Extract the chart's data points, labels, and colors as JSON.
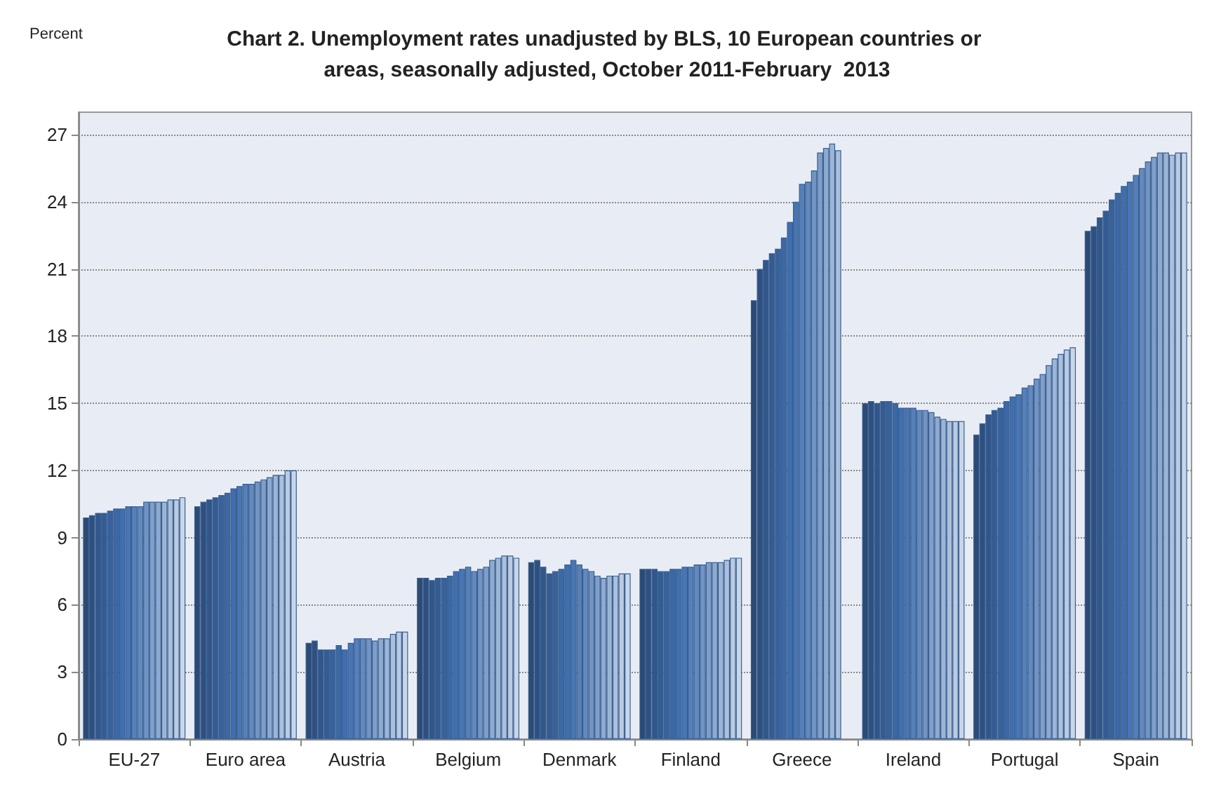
{
  "chart_data": {
    "type": "bar",
    "title": "Chart 2. Unemployment rates unadjusted by BLS, 10 European countries or areas, seasonally adjusted, October 2011-February  2013",
    "ylabel": "Percent",
    "categories": [
      "EU-27",
      "Euro area",
      "Austria",
      "Belgium",
      "Denmark",
      "Finland",
      "Greece",
      "Ireland",
      "Portugal",
      "Spain"
    ],
    "ylim": [
      0,
      28
    ],
    "yticks": [
      0,
      3,
      6,
      9,
      12,
      15,
      18,
      21,
      24,
      27
    ],
    "grid": "y",
    "series": [
      {
        "color": "#2b4a75",
        "values": [
          9.9,
          10.4,
          4.3,
          7.2,
          7.9,
          7.6,
          19.6,
          15.0,
          13.6,
          22.7
        ]
      },
      {
        "color": "#2e5080",
        "values": [
          10.0,
          10.6,
          4.4,
          7.2,
          8.0,
          7.6,
          21.0,
          15.1,
          14.1,
          22.9
        ]
      },
      {
        "color": "#31568a",
        "values": [
          10.1,
          10.7,
          4.0,
          7.1,
          7.7,
          7.6,
          21.4,
          15.0,
          14.5,
          23.3
        ]
      },
      {
        "color": "#345c93",
        "values": [
          10.1,
          10.8,
          4.0,
          7.2,
          7.4,
          7.5,
          21.7,
          15.1,
          14.7,
          23.6
        ]
      },
      {
        "color": "#37629c",
        "values": [
          10.2,
          10.9,
          4.0,
          7.2,
          7.5,
          7.5,
          21.9,
          15.1,
          14.8,
          24.1
        ]
      },
      {
        "color": "#3b68a6",
        "values": [
          10.3,
          11.0,
          4.2,
          7.3,
          7.6,
          7.6,
          22.4,
          15.0,
          15.1,
          24.4
        ]
      },
      {
        "color": "#3f6fb0",
        "values": [
          10.3,
          11.2,
          4.0,
          7.5,
          7.8,
          7.6,
          23.1,
          14.8,
          15.3,
          24.7
        ]
      },
      {
        "color": "#4876b5",
        "values": [
          10.4,
          11.3,
          4.3,
          7.6,
          8.0,
          7.7,
          24.0,
          14.8,
          15.4,
          24.9
        ]
      },
      {
        "color": "#5580ba",
        "values": [
          10.4,
          11.4,
          4.5,
          7.7,
          7.8,
          7.7,
          24.8,
          14.8,
          15.7,
          25.2
        ]
      },
      {
        "color": "#638abf",
        "values": [
          10.4,
          11.4,
          4.5,
          7.5,
          7.6,
          7.8,
          24.9,
          14.7,
          15.8,
          25.5
        ]
      },
      {
        "color": "#7194c5",
        "values": [
          10.6,
          11.5,
          4.5,
          7.6,
          7.5,
          7.8,
          25.4,
          14.7,
          16.1,
          25.8
        ]
      },
      {
        "color": "#7f9fca",
        "values": [
          10.6,
          11.6,
          4.4,
          7.7,
          7.3,
          7.9,
          26.2,
          14.6,
          16.3,
          26.0
        ]
      },
      {
        "color": "#8eaad0",
        "values": [
          10.6,
          11.7,
          4.5,
          8.0,
          7.2,
          7.9,
          26.4,
          14.4,
          16.7,
          26.2
        ]
      },
      {
        "color": "#9cb5d6",
        "values": [
          10.6,
          11.8,
          4.5,
          8.1,
          7.3,
          7.9,
          26.6,
          14.3,
          17.0,
          26.2
        ]
      },
      {
        "color": "#abc0dc",
        "values": [
          10.7,
          11.8,
          4.7,
          8.2,
          7.3,
          8.0,
          26.3,
          14.2,
          17.2,
          26.1
        ]
      },
      {
        "color": "#bacbe2",
        "values": [
          10.7,
          12.0,
          4.8,
          8.2,
          7.4,
          8.1,
          null,
          14.2,
          17.4,
          26.2
        ]
      },
      {
        "color": "#c9d6e9",
        "values": [
          10.8,
          12.0,
          4.8,
          8.1,
          7.4,
          8.1,
          null,
          14.2,
          17.5,
          26.2
        ]
      }
    ]
  }
}
